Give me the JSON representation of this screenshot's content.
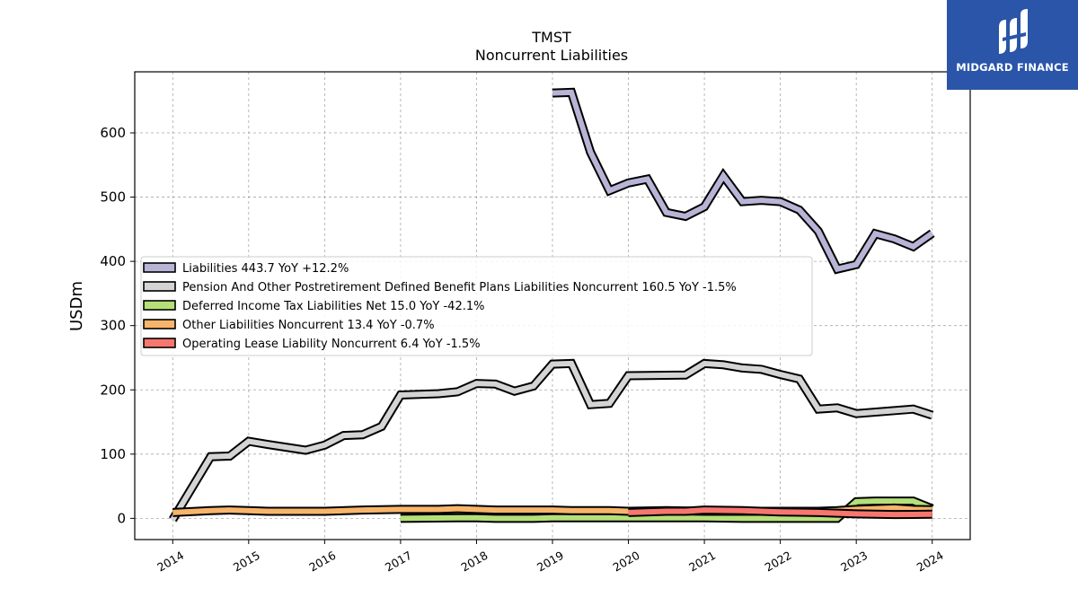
{
  "brand": {
    "name": "MIDGARD FINANCE",
    "background": "#2a55a8",
    "logo_icon": "midgard-logo-icon"
  },
  "chart_data": {
    "type": "line",
    "title": "TMST",
    "subtitle": "Noncurrent  Liabilities",
    "ylabel": "USDm",
    "xlabel": "",
    "ylim": [
      -33,
      695
    ],
    "xlim": [
      2013.5,
      2024.5
    ],
    "yticks": [
      0,
      100,
      200,
      300,
      400,
      500,
      600
    ],
    "xticks": [
      "2014",
      "2015",
      "2016",
      "2017",
      "2018",
      "2019",
      "2020",
      "2021",
      "2022",
      "2023",
      "2024"
    ],
    "grid": true,
    "legend_position": "center-left",
    "series": [
      {
        "name": "Liabilities",
        "legend_label": "Liabilities  443.7 YoY +12.2%",
        "color": "#b8b4d6",
        "x": [
          2019.0,
          2019.25,
          2019.5,
          2019.75,
          2020.0,
          2020.25,
          2020.5,
          2020.75,
          2021.0,
          2021.25,
          2021.5,
          2021.75,
          2022.0,
          2022.25,
          2022.5,
          2022.75,
          2023.0,
          2023.25,
          2023.5,
          2023.75,
          2024.0
        ],
        "y": [
          662,
          663,
          570,
          510,
          522,
          528,
          476,
          470,
          485,
          533,
          493,
          495,
          493,
          480,
          447,
          388,
          395,
          443,
          435,
          423,
          443.7
        ]
      },
      {
        "name": "Pension And Other Postretirement Defined Benefit Plans Liabilities Noncurrent",
        "legend_label": "Pension And Other Postretirement Defined Benefit Plans Liabilities Noncurrent  160.5 YoY -1.5%",
        "color": "#d4d4d4",
        "x": [
          2014.0,
          2014.5,
          2014.75,
          2015.0,
          2015.25,
          2015.75,
          2016.0,
          2016.25,
          2016.5,
          2016.75,
          2017.0,
          2017.25,
          2017.5,
          2017.75,
          2018.0,
          2018.25,
          2018.5,
          2018.75,
          2019.0,
          2019.25,
          2019.5,
          2019.75,
          2020.0,
          2020.75,
          2021.0,
          2021.25,
          2021.5,
          2021.75,
          2022.0,
          2022.25,
          2022.5,
          2022.75,
          2023.0,
          2023.75,
          2024.0
        ],
        "y": [
          -2,
          96,
          97,
          120,
          115,
          106,
          114,
          129,
          130,
          143,
          192,
          193,
          194,
          197,
          210,
          209,
          198,
          206,
          240,
          241,
          177,
          179,
          222,
          223,
          241,
          239,
          234,
          232,
          224,
          217,
          170,
          172,
          163,
          170,
          160.5
        ]
      },
      {
        "name": "Deferred Income Tax Liabilities Net",
        "legend_label": "Deferred Income Tax Liabilities Net  15.0 YoY -42.1%",
        "color": "#b5e079",
        "x": [
          2017.0,
          2017.75,
          2018.0,
          2018.25,
          2018.75,
          2019.0,
          2019.5,
          2020.0,
          2020.5,
          2021.0,
          2021.5,
          2022.0,
          2022.75,
          2023.0,
          2023.25,
          2023.75,
          2024.0
        ],
        "y": [
          0,
          1,
          1,
          0,
          0,
          1,
          1,
          1,
          1,
          1,
          0,
          0,
          0,
          26,
          27,
          27,
          15.0
        ]
      },
      {
        "name": "Other Liabilities Noncurrent",
        "legend_label": "Other Liabilities Noncurrent  13.4 YoY -0.7%",
        "color": "#f7b56b",
        "x": [
          2014.0,
          2014.5,
          2014.75,
          2015.0,
          2015.25,
          2016.0,
          2016.5,
          2017.0,
          2017.5,
          2017.75,
          2018.0,
          2018.25,
          2018.75,
          2019.0,
          2019.25,
          2019.75,
          2020.0,
          2020.5,
          2021.0,
          2021.5,
          2022.0,
          2022.5,
          2022.75,
          2023.0,
          2023.5,
          2023.75,
          2024.0
        ],
        "y": [
          9,
          12,
          13,
          12,
          11,
          11,
          13,
          14,
          14,
          15,
          14,
          13,
          13,
          13,
          12,
          12,
          11,
          12,
          11,
          11,
          11,
          11,
          12,
          14,
          16,
          14,
          13.4
        ]
      },
      {
        "name": "Operating Lease Liability Noncurrent",
        "legend_label": "Operating Lease Liability Noncurrent  6.4 YoY -1.5%",
        "color": "#f7766e",
        "x": [
          2020.0,
          2020.5,
          2020.75,
          2021.0,
          2021.5,
          2022.0,
          2022.5,
          2023.0,
          2023.5,
          2024.0
        ],
        "y": [
          9,
          11,
          11,
          13,
          12,
          10,
          9,
          7,
          6,
          6.4
        ]
      }
    ]
  }
}
